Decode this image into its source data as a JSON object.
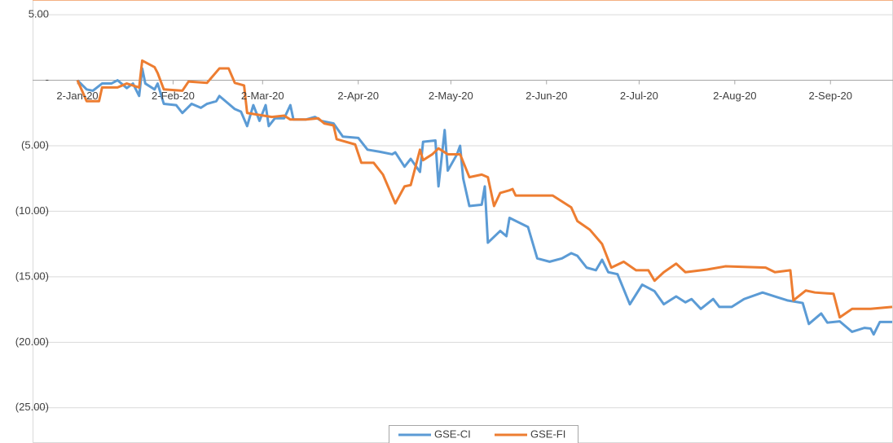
{
  "chart_data": {
    "type": "line",
    "xlim": [
      "2020-01-02",
      "2020-09-22"
    ],
    "xticks": [
      {
        "value": "2020-01-02",
        "label": "2-Jan-20"
      },
      {
        "value": "2020-02-02",
        "label": "2-Feb-20"
      },
      {
        "value": "2020-03-02",
        "label": "2-Mar-20"
      },
      {
        "value": "2020-04-02",
        "label": "2-Apr-20"
      },
      {
        "value": "2020-05-02",
        "label": "2-May-20"
      },
      {
        "value": "2020-06-02",
        "label": "2-Jun-20"
      },
      {
        "value": "2020-07-02",
        "label": "2-Jul-20"
      },
      {
        "value": "2020-08-02",
        "label": "2-Aug-20"
      },
      {
        "value": "2020-09-02",
        "label": "2-Sep-20"
      }
    ],
    "ylim": [
      -27.5,
      6
    ],
    "yticks": [
      {
        "value": 5,
        "label": "5.00"
      },
      {
        "value": 0,
        "label": "-"
      },
      {
        "value": -5,
        "label": "(5.00)"
      },
      {
        "value": -10,
        "label": "(10.00)"
      },
      {
        "value": -15,
        "label": "(15.00)"
      },
      {
        "value": -20,
        "label": "(20.00)"
      },
      {
        "value": -25,
        "label": "(25.00)"
      }
    ],
    "grid": true,
    "legend": "bottom",
    "series": [
      {
        "name": "GSE-CI",
        "color": "#5b9bd5",
        "x": [
          "2020-01-02",
          "2020-01-05",
          "2020-01-07",
          "2020-01-10",
          "2020-01-13",
          "2020-01-15",
          "2020-01-18",
          "2020-01-20",
          "2020-01-22",
          "2020-01-23",
          "2020-01-24",
          "2020-01-27",
          "2020-01-28",
          "2020-01-30",
          "2020-02-03",
          "2020-02-05",
          "2020-02-08",
          "2020-02-11",
          "2020-02-13",
          "2020-02-16",
          "2020-02-17",
          "2020-02-20",
          "2020-02-22",
          "2020-02-24",
          "2020-02-26",
          "2020-02-28",
          "2020-03-01",
          "2020-03-03",
          "2020-03-04",
          "2020-03-06",
          "2020-03-09",
          "2020-03-11",
          "2020-03-12",
          "2020-03-16",
          "2020-03-19",
          "2020-03-21",
          "2020-03-25",
          "2020-03-28",
          "2020-04-02",
          "2020-04-05",
          "2020-04-09",
          "2020-04-13",
          "2020-04-14",
          "2020-04-17",
          "2020-04-19",
          "2020-04-22",
          "2020-04-23",
          "2020-04-27",
          "2020-04-28",
          "2020-04-30",
          "2020-05-01",
          "2020-05-04",
          "2020-05-05",
          "2020-05-06",
          "2020-05-08",
          "2020-05-12",
          "2020-05-13",
          "2020-05-14",
          "2020-05-18",
          "2020-05-20",
          "2020-05-21",
          "2020-05-27",
          "2020-05-30",
          "2020-06-03",
          "2020-06-07",
          "2020-06-10",
          "2020-06-12",
          "2020-06-15",
          "2020-06-18",
          "2020-06-20",
          "2020-06-22",
          "2020-06-25",
          "2020-06-29",
          "2020-07-03",
          "2020-07-07",
          "2020-07-10",
          "2020-07-14",
          "2020-07-17",
          "2020-07-19",
          "2020-07-22",
          "2020-07-26",
          "2020-07-28",
          "2020-08-01",
          "2020-08-05",
          "2020-08-11",
          "2020-08-15",
          "2020-08-19",
          "2020-08-24",
          "2020-08-26",
          "2020-08-30",
          "2020-09-01",
          "2020-09-05",
          "2020-09-09",
          "2020-09-13",
          "2020-09-15",
          "2020-09-16",
          "2020-09-18",
          "2020-09-22"
        ],
        "values": [
          0,
          -0.7,
          -0.8,
          -0.25,
          -0.25,
          0,
          -0.6,
          -0.25,
          -1.2,
          0.9,
          -0.25,
          -0.7,
          -0.25,
          -1.8,
          -1.9,
          -2.5,
          -1.8,
          -2.1,
          -1.8,
          -1.6,
          -1.2,
          -1.8,
          -2.2,
          -2.4,
          -3.5,
          -1.9,
          -3.1,
          -1.9,
          -3.5,
          -2.9,
          -2.9,
          -1.9,
          -3.0,
          -3.0,
          -2.8,
          -3.1,
          -3.3,
          -4.3,
          -4.4,
          -5.3,
          -5.46,
          -5.65,
          -5.5,
          -6.6,
          -6.0,
          -7.0,
          -4.7,
          -4.6,
          -8.1,
          -3.8,
          -6.9,
          -5.65,
          -5.0,
          -7.5,
          -9.6,
          -9.5,
          -8.1,
          -12.4,
          -11.5,
          -11.9,
          -10.5,
          -11.2,
          -13.6,
          -13.85,
          -13.6,
          -13.2,
          -13.4,
          -14.3,
          -14.5,
          -13.7,
          -14.65,
          -14.8,
          -17.1,
          -15.6,
          -16.1,
          -17.1,
          -16.5,
          -16.95,
          -16.7,
          -17.45,
          -16.7,
          -17.3,
          -17.3,
          -16.7,
          -16.2,
          -16.5,
          -16.8,
          -17.0,
          -18.6,
          -17.8,
          -18.5,
          -18.4,
          -19.2,
          -18.9,
          -18.95,
          -19.4,
          -18.45,
          -18.45
        ]
      },
      {
        "name": "GSE-FI",
        "color": "#ed7d31",
        "x": [
          "2020-01-02",
          "2020-01-05",
          "2020-01-09",
          "2020-01-10",
          "2020-01-15",
          "2020-01-18",
          "2020-01-22",
          "2020-01-23",
          "2020-01-27",
          "2020-01-28",
          "2020-01-30",
          "2020-02-05",
          "2020-02-07",
          "2020-02-13",
          "2020-02-17",
          "2020-02-20",
          "2020-02-22",
          "2020-02-25",
          "2020-02-26",
          "2020-03-05",
          "2020-03-09",
          "2020-03-11",
          "2020-03-16",
          "2020-03-20",
          "2020-03-22",
          "2020-03-25",
          "2020-03-26",
          "2020-04-01",
          "2020-04-03",
          "2020-04-07",
          "2020-04-10",
          "2020-04-14",
          "2020-04-17",
          "2020-04-19",
          "2020-04-22",
          "2020-04-23",
          "2020-04-26",
          "2020-04-28",
          "2020-05-01",
          "2020-05-05",
          "2020-05-08",
          "2020-05-12",
          "2020-05-14",
          "2020-05-16",
          "2020-05-18",
          "2020-05-21",
          "2020-05-22",
          "2020-05-23",
          "2020-06-04",
          "2020-06-07",
          "2020-06-10",
          "2020-06-12",
          "2020-06-16",
          "2020-06-20",
          "2020-06-23",
          "2020-06-27",
          "2020-07-01",
          "2020-07-05",
          "2020-07-07",
          "2020-07-10",
          "2020-07-14",
          "2020-07-17",
          "2020-07-24",
          "2020-07-30",
          "2020-08-12",
          "2020-08-15",
          "2020-08-20",
          "2020-08-21",
          "2020-08-25",
          "2020-08-28",
          "2020-09-03",
          "2020-09-05",
          "2020-09-09",
          "2020-09-15",
          "2020-09-22"
        ],
        "values": [
          0,
          -1.6,
          -1.6,
          -0.55,
          -0.55,
          -0.25,
          -0.55,
          1.5,
          1.0,
          0.55,
          -0.7,
          -0.8,
          -0.1,
          -0.2,
          0.9,
          0.9,
          -0.2,
          -0.4,
          -2.5,
          -2.8,
          -2.7,
          -3.0,
          -3.0,
          -2.9,
          -3.3,
          -3.45,
          -4.5,
          -4.9,
          -6.3,
          -6.3,
          -7.2,
          -9.4,
          -8.1,
          -8.0,
          -5.3,
          -6.1,
          -5.65,
          -5.2,
          -5.65,
          -5.65,
          -7.4,
          -7.2,
          -7.4,
          -9.6,
          -8.6,
          -8.4,
          -8.3,
          -8.8,
          -8.8,
          -9.25,
          -9.7,
          -10.75,
          -11.4,
          -12.5,
          -14.3,
          -13.85,
          -14.5,
          -14.5,
          -15.3,
          -14.65,
          -14.0,
          -14.65,
          -14.45,
          -14.2,
          -14.3,
          -14.65,
          -14.5,
          -16.8,
          -16.05,
          -16.2,
          -16.3,
          -18.1,
          -17.45,
          -17.45,
          -17.3
        ]
      }
    ]
  }
}
